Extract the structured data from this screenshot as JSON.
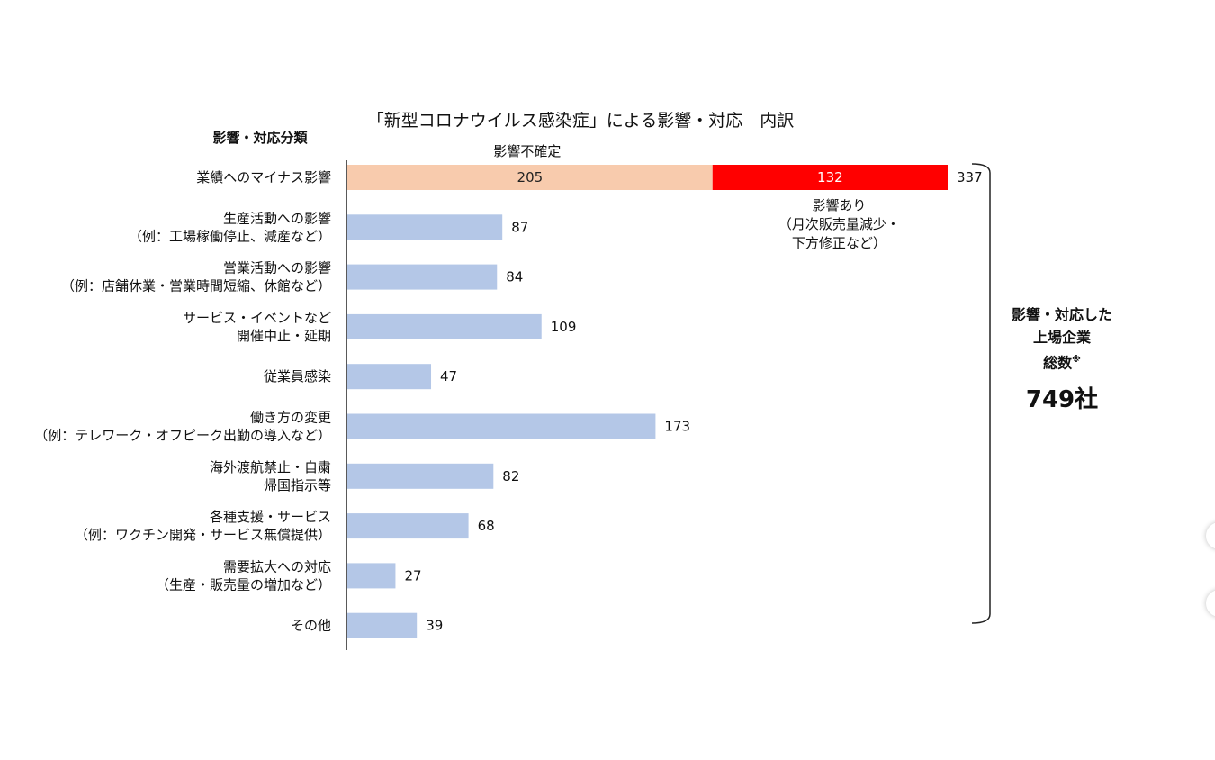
{
  "chart_data": {
    "type": "bar",
    "orientation": "horizontal",
    "title": "「新型コロナウイルス感染症」による影響・対応　内訳",
    "ylabel": "影響・対応分類",
    "categories": [
      [
        "業績へのマイナス影響"
      ],
      [
        "生産活動への影響",
        "（例：工場稼働停止、減産など）"
      ],
      [
        "営業活動への影響",
        "（例：店舗休業・営業時間短縮、休館など）"
      ],
      [
        "サービス・イベントなど",
        "開催中止・延期"
      ],
      [
        "従業員感染"
      ],
      [
        "働き方の変更",
        "（例：テレワーク・オフピーク出勤の導入など）"
      ],
      [
        "海外渡航禁止・自粛",
        "帰国指示等"
      ],
      [
        "各種支援・サービス",
        "（例：ワクチン開発・サービス無償提供）"
      ],
      [
        "需要拡大への対応",
        "（生産・販売量の増加など）"
      ],
      [
        "その他"
      ]
    ],
    "values": [
      337,
      87,
      84,
      109,
      47,
      173,
      82,
      68,
      27,
      39
    ],
    "stacked_first_row": {
      "segments": [
        {
          "name": "影響不確定",
          "value": 205,
          "color": "#F8CBAD"
        },
        {
          "name": "影響あり（月次販売量減少・下方修正など）",
          "value": 132,
          "color": "#FF0000"
        }
      ],
      "total": 337,
      "label_above": "影響不確定",
      "label_below": [
        "影響あり",
        "（月次販売量減少・",
        "下方修正など）"
      ]
    },
    "bar_color": "#B4C7E7",
    "xlim": [
      0,
      337
    ],
    "grid": false
  },
  "side_total": {
    "label_lines": [
      "影響・対応した",
      "上場企業",
      "総数"
    ],
    "footnote_mark": "※",
    "value": "749社"
  }
}
